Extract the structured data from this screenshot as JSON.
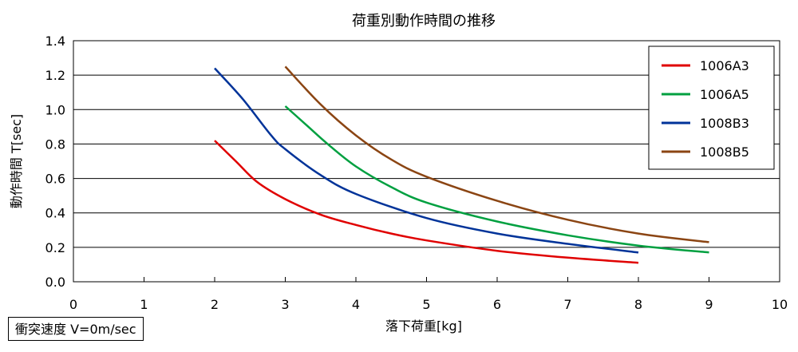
{
  "chart_data": {
    "type": "line",
    "title": "荷重別動作時間の推移",
    "xlabel": "落下荷重[kg]",
    "ylabel": "動作時間 T[sec]",
    "xlim": [
      0,
      10
    ],
    "ylim": [
      0,
      1.4
    ],
    "xticks": [
      "0",
      "1",
      "2",
      "3",
      "4",
      "5",
      "6",
      "7",
      "8",
      "9",
      "10"
    ],
    "yticks": [
      "0.0",
      "0.2",
      "0.4",
      "0.6",
      "0.8",
      "1.0",
      "1.2",
      "1.4"
    ],
    "grid": "horizontal",
    "legend_position": "top-right",
    "series": [
      {
        "name": "1006A3",
        "color": "#e00000",
        "x": [
          2,
          2.3,
          2.6,
          3,
          3.5,
          4,
          4.5,
          5,
          6,
          7,
          8
        ],
        "y": [
          0.82,
          0.7,
          0.58,
          0.48,
          0.39,
          0.33,
          0.28,
          0.24,
          0.18,
          0.14,
          0.11
        ]
      },
      {
        "name": "1006A5",
        "color": "#00a040",
        "x": [
          3,
          3.3,
          3.6,
          4,
          4.5,
          5,
          6,
          7,
          8,
          9
        ],
        "y": [
          1.02,
          0.91,
          0.8,
          0.67,
          0.55,
          0.46,
          0.35,
          0.27,
          0.21,
          0.17
        ]
      },
      {
        "name": "1008B3",
        "color": "#003399",
        "x": [
          2,
          2.4,
          2.8,
          3,
          3.5,
          4,
          5,
          6,
          7,
          8
        ],
        "y": [
          1.24,
          1.06,
          0.85,
          0.77,
          0.62,
          0.51,
          0.37,
          0.28,
          0.22,
          0.17
        ]
      },
      {
        "name": "1008B5",
        "color": "#8B4513",
        "x": [
          3,
          3.5,
          4,
          4.5,
          5,
          6,
          7,
          8,
          9
        ],
        "y": [
          1.25,
          1.03,
          0.85,
          0.71,
          0.61,
          0.47,
          0.36,
          0.28,
          0.23
        ]
      }
    ]
  },
  "note": "衝突速度 V=0m/sec"
}
